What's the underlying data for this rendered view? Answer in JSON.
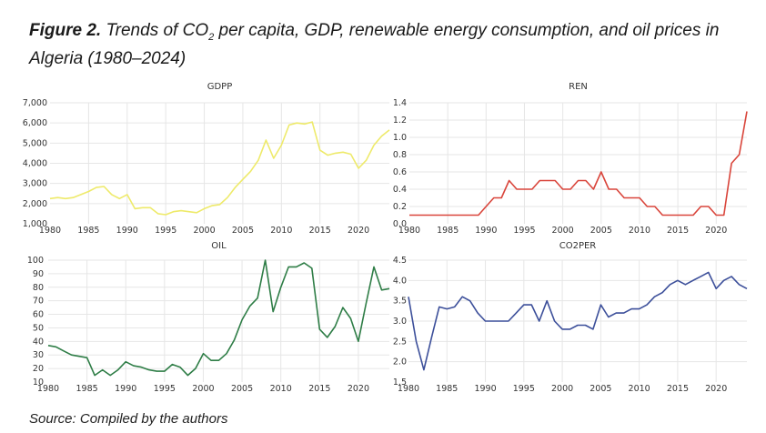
{
  "figure": {
    "label": "Figure 2.",
    "title_pre": " Trends of CO",
    "title_sub": "2",
    "title_post": " per capita, GDP, renewable energy consumption, and oil prices in Algeria (1980–2024)",
    "source": "Source: Compiled by the authors"
  },
  "chart_data": [
    {
      "type": "line",
      "title": "GDPP",
      "xlabel": "",
      "ylabel": "",
      "color": "#eeea6a",
      "xlim": [
        1980,
        2024
      ],
      "ylim": [
        1000,
        7000
      ],
      "yticks": [
        1000,
        2000,
        3000,
        4000,
        5000,
        6000,
        7000
      ],
      "ytick_labels": [
        "1,000",
        "2,000",
        "3,000",
        "4,000",
        "5,000",
        "6,000",
        "7,000"
      ],
      "xticks": [
        1980,
        1985,
        1990,
        1995,
        2000,
        2005,
        2010,
        2015,
        2020
      ],
      "grid": true,
      "x": [
        1980,
        1981,
        1982,
        1983,
        1984,
        1985,
        1986,
        1987,
        1988,
        1989,
        1990,
        1991,
        1992,
        1993,
        1994,
        1995,
        1996,
        1997,
        1998,
        1999,
        2000,
        2001,
        2002,
        2003,
        2004,
        2005,
        2006,
        2007,
        2008,
        2009,
        2010,
        2011,
        2012,
        2013,
        2014,
        2015,
        2016,
        2017,
        2018,
        2019,
        2020,
        2021,
        2022,
        2023,
        2024
      ],
      "y": [
        2250,
        2300,
        2250,
        2300,
        2450,
        2600,
        2800,
        2850,
        2450,
        2250,
        2450,
        1750,
        1800,
        1800,
        1500,
        1450,
        1600,
        1650,
        1600,
        1550,
        1750,
        1900,
        1950,
        2300,
        2800,
        3200,
        3600,
        4150,
        5150,
        4250,
        4900,
        5900,
        6000,
        5950,
        6050,
        4650,
        4400,
        4500,
        4550,
        4450,
        3750,
        4150,
        4900,
        5350,
        5650
      ]
    },
    {
      "type": "line",
      "title": "REN",
      "xlabel": "",
      "ylabel": "",
      "color": "#d9453b",
      "xlim": [
        1980,
        2024
      ],
      "ylim": [
        0.0,
        1.4
      ],
      "yticks": [
        0.0,
        0.2,
        0.4,
        0.6,
        0.8,
        1.0,
        1.2,
        1.4
      ],
      "ytick_labels": [
        "0.0",
        "0.2",
        "0.4",
        "0.6",
        "0.8",
        "1.0",
        "1.2",
        "1.4"
      ],
      "xticks": [
        1980,
        1985,
        1990,
        1995,
        2000,
        2005,
        2010,
        2015,
        2020
      ],
      "grid": true,
      "x": [
        1980,
        1981,
        1982,
        1983,
        1984,
        1985,
        1986,
        1987,
        1988,
        1989,
        1990,
        1991,
        1992,
        1993,
        1994,
        1995,
        1996,
        1997,
        1998,
        1999,
        2000,
        2001,
        2002,
        2003,
        2004,
        2005,
        2006,
        2007,
        2008,
        2009,
        2010,
        2011,
        2012,
        2013,
        2014,
        2015,
        2016,
        2017,
        2018,
        2019,
        2020,
        2021,
        2022,
        2023,
        2024
      ],
      "y": [
        0.1,
        0.1,
        0.1,
        0.1,
        0.1,
        0.1,
        0.1,
        0.1,
        0.1,
        0.1,
        0.2,
        0.3,
        0.3,
        0.5,
        0.4,
        0.4,
        0.4,
        0.5,
        0.5,
        0.5,
        0.4,
        0.4,
        0.5,
        0.5,
        0.4,
        0.6,
        0.4,
        0.4,
        0.3,
        0.3,
        0.3,
        0.2,
        0.2,
        0.1,
        0.1,
        0.1,
        0.1,
        0.1,
        0.2,
        0.2,
        0.1,
        0.1,
        0.7,
        0.8,
        1.3
      ]
    },
    {
      "type": "line",
      "title": "OIL",
      "xlabel": "",
      "ylabel": "",
      "color": "#2e7d46",
      "xlim": [
        1980,
        2024
      ],
      "ylim": [
        10,
        100
      ],
      "yticks": [
        10,
        20,
        30,
        40,
        50,
        60,
        70,
        80,
        90,
        100
      ],
      "ytick_labels": [
        "10",
        "20",
        "30",
        "40",
        "50",
        "60",
        "70",
        "80",
        "90",
        "100"
      ],
      "xticks": [
        1980,
        1985,
        1990,
        1995,
        2000,
        2005,
        2010,
        2015,
        2020
      ],
      "grid": true,
      "x": [
        1980,
        1981,
        1982,
        1983,
        1984,
        1985,
        1986,
        1987,
        1988,
        1989,
        1990,
        1991,
        1992,
        1993,
        1994,
        1995,
        1996,
        1997,
        1998,
        1999,
        2000,
        2001,
        2002,
        2003,
        2004,
        2005,
        2006,
        2007,
        2008,
        2009,
        2010,
        2011,
        2012,
        2013,
        2014,
        2015,
        2016,
        2017,
        2018,
        2019,
        2020,
        2021,
        2022,
        2023,
        2024
      ],
      "y": [
        37,
        36,
        33,
        30,
        29,
        28,
        15,
        19,
        15,
        19,
        25,
        22,
        21,
        19,
        18,
        18,
        23,
        21,
        15,
        20,
        31,
        26,
        26,
        31,
        41,
        56,
        66,
        72,
        100,
        62,
        80,
        95,
        95,
        98,
        94,
        49,
        43,
        51,
        65,
        57,
        40,
        68,
        95,
        78,
        79
      ]
    },
    {
      "type": "line",
      "title": "CO2PER",
      "xlabel": "",
      "ylabel": "",
      "color": "#3c4f9a",
      "xlim": [
        1980,
        2024
      ],
      "ylim": [
        1.5,
        4.5
      ],
      "yticks": [
        1.5,
        2.0,
        2.5,
        3.0,
        3.5,
        4.0,
        4.5
      ],
      "ytick_labels": [
        "1.5",
        "2.0",
        "2.5",
        "3.0",
        "3.5",
        "4.0",
        "4.5"
      ],
      "xticks": [
        1980,
        1985,
        1990,
        1995,
        2000,
        2005,
        2010,
        2015,
        2020
      ],
      "grid": true,
      "x": [
        1980,
        1981,
        1982,
        1983,
        1984,
        1985,
        1986,
        1987,
        1988,
        1989,
        1990,
        1991,
        1992,
        1993,
        1994,
        1995,
        1996,
        1997,
        1998,
        1999,
        2000,
        2001,
        2002,
        2003,
        2004,
        2005,
        2006,
        2007,
        2008,
        2009,
        2010,
        2011,
        2012,
        2013,
        2014,
        2015,
        2016,
        2017,
        2018,
        2019,
        2020,
        2021,
        2022,
        2023,
        2024
      ],
      "y": [
        3.6,
        2.5,
        1.8,
        2.6,
        3.35,
        3.3,
        3.35,
        3.6,
        3.5,
        3.2,
        3.0,
        3.0,
        3.0,
        3.0,
        3.2,
        3.4,
        3.4,
        3.0,
        3.5,
        3.0,
        2.8,
        2.8,
        2.9,
        2.9,
        2.8,
        3.4,
        3.1,
        3.2,
        3.2,
        3.3,
        3.3,
        3.4,
        3.6,
        3.7,
        3.9,
        4.0,
        3.9,
        4.0,
        4.1,
        4.2,
        3.8,
        4.0,
        4.1,
        3.9,
        3.8
      ]
    }
  ]
}
